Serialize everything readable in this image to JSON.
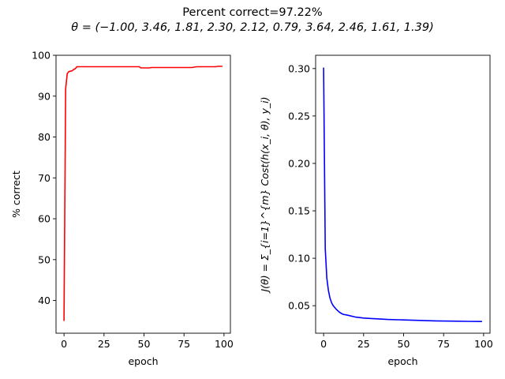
{
  "figure": {
    "title_line1": "Percent correct=97.22%",
    "title_line2": "θ = (−1.00, 3.46, 1.81, 2.30, 2.12, 0.79, 3.64, 2.46, 1.61, 1.39)"
  },
  "chart_data": [
    {
      "type": "line",
      "xlabel": "epoch",
      "ylabel": "% correct",
      "xlim": [
        -5,
        104
      ],
      "ylim": [
        32,
        100
      ],
      "xticks": [
        0,
        25,
        50,
        75,
        100
      ],
      "yticks": [
        40,
        50,
        60,
        70,
        80,
        90,
        100
      ],
      "grid": false,
      "series": [
        {
          "color": "#ff0000",
          "x": [
            0,
            1,
            2,
            3,
            4,
            5,
            6,
            7,
            8,
            10,
            15,
            20,
            25,
            30,
            35,
            40,
            45,
            47,
            48,
            50,
            53,
            55,
            60,
            65,
            70,
            75,
            80,
            83,
            85,
            90,
            95,
            96,
            99
          ],
          "y": [
            35,
            91.8,
            95.5,
            96,
            96.1,
            96.2,
            96.5,
            96.7,
            97.2,
            97.2,
            97.2,
            97.2,
            97.2,
            97.2,
            97.2,
            97.2,
            97.2,
            97.2,
            96.9,
            96.9,
            96.9,
            97.0,
            97.0,
            97.0,
            97.0,
            97.0,
            97.0,
            97.2,
            97.2,
            97.2,
            97.2,
            97.3,
            97.3
          ]
        }
      ]
    },
    {
      "type": "line",
      "xlabel": "epoch",
      "ylabel": "J(θ) = Σ_{i=1}^{m} Cost(h(x_i, θ), y_i)",
      "xlim": [
        -5,
        104
      ],
      "ylim": [
        0.021,
        0.314
      ],
      "xticks": [
        0,
        25,
        50,
        75,
        100
      ],
      "yticks": [
        0.05,
        0.1,
        0.15,
        0.2,
        0.25,
        0.3
      ],
      "ytick_labels": [
        "0.05",
        "0.10",
        "0.15",
        "0.20",
        "0.25",
        "0.30"
      ],
      "grid": false,
      "series": [
        {
          "color": "#0000ff",
          "x": [
            0,
            1,
            2,
            3,
            4,
            5,
            6,
            8,
            10,
            12,
            15,
            20,
            25,
            30,
            40,
            50,
            60,
            70,
            80,
            90,
            99
          ],
          "y": [
            0.301,
            0.11,
            0.079,
            0.066,
            0.058,
            0.053,
            0.05,
            0.046,
            0.043,
            0.041,
            0.04,
            0.038,
            0.037,
            0.0365,
            0.0355,
            0.035,
            0.0345,
            0.034,
            0.0337,
            0.0335,
            0.0333
          ]
        }
      ]
    }
  ]
}
